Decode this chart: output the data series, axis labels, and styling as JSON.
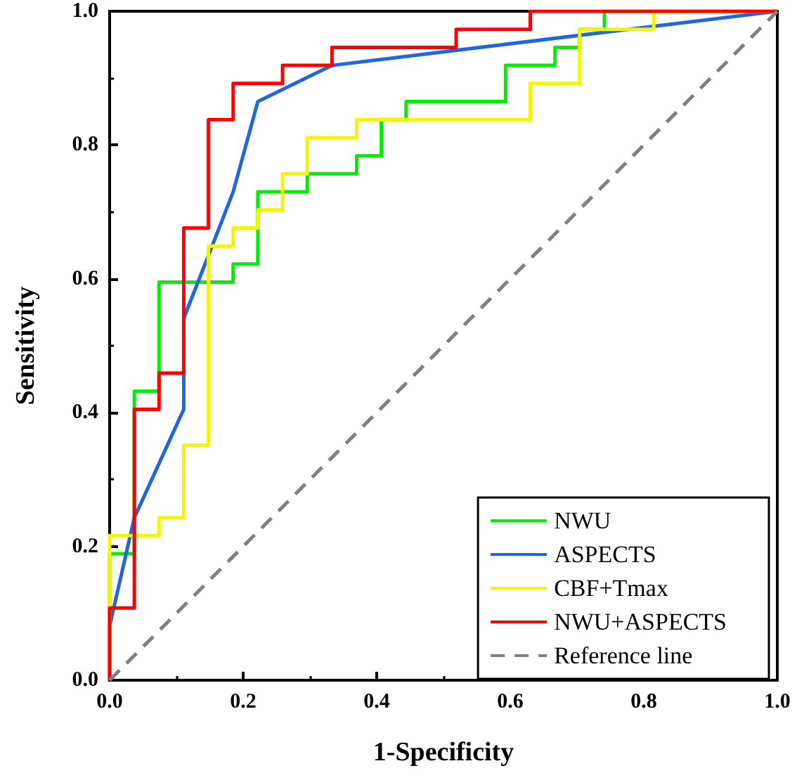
{
  "chart_data": {
    "type": "line",
    "xlabel": "1-Specificity",
    "ylabel": "Sensitivity",
    "xlim": [
      0,
      1
    ],
    "ylim": [
      0,
      1
    ],
    "xticks": [
      {
        "value": 0,
        "label": "0.0"
      },
      {
        "value": 0.2,
        "label": "0.2"
      },
      {
        "value": 0.4,
        "label": "0.4"
      },
      {
        "value": 0.6,
        "label": "0.6"
      },
      {
        "value": 0.8,
        "label": "0.8"
      },
      {
        "value": 1,
        "label": "1.0"
      }
    ],
    "yticks": [
      {
        "value": 0,
        "label": "0.0"
      },
      {
        "value": 0.2,
        "label": "0.2"
      },
      {
        "value": 0.4,
        "label": "0.4"
      },
      {
        "value": 0.6,
        "label": "0.6"
      },
      {
        "value": 0.8,
        "label": "0.8"
      },
      {
        "value": 1,
        "label": "1.0"
      }
    ],
    "grid": false,
    "legend": "bottom right",
    "marker": "none",
    "series": [
      {
        "name": "NWU",
        "color": "#00ee00",
        "x": [
          0,
          0,
          0.037,
          0.037,
          0.074,
          0.074,
          0.185,
          0.185,
          0.222,
          0.222,
          0.296,
          0.296,
          0.37,
          0.37,
          0.407,
          0.407,
          0.444,
          0.444,
          0.593,
          0.593,
          0.667,
          0.667,
          0.704,
          0.704,
          0.741,
          0.741,
          1
        ],
        "values": [
          0,
          0.189,
          0.189,
          0.432,
          0.432,
          0.595,
          0.595,
          0.622,
          0.622,
          0.73,
          0.73,
          0.757,
          0.757,
          0.784,
          0.784,
          0.838,
          0.838,
          0.865,
          0.865,
          0.919,
          0.919,
          0.946,
          0.946,
          0.973,
          0.973,
          1,
          1
        ]
      },
      {
        "name": "ASPECTS",
        "color": "#1f66e0",
        "x": [
          0,
          0,
          0.037,
          0.111,
          0.111,
          0.148,
          0.185,
          0.222,
          0.333,
          1
        ],
        "values": [
          0,
          0.081,
          0.243,
          0.405,
          0.541,
          0.635,
          0.73,
          0.865,
          0.919,
          1
        ]
      },
      {
        "name": "CBF+Tmax",
        "color": "#f5f500",
        "x": [
          0,
          0,
          0.074,
          0.074,
          0.111,
          0.111,
          0.148,
          0.148,
          0.185,
          0.185,
          0.222,
          0.222,
          0.259,
          0.259,
          0.296,
          0.296,
          0.37,
          0.37,
          0.63,
          0.63,
          0.704,
          0.704,
          0.815,
          0.815,
          1
        ],
        "values": [
          0,
          0.216,
          0.216,
          0.243,
          0.243,
          0.351,
          0.351,
          0.649,
          0.649,
          0.676,
          0.676,
          0.703,
          0.703,
          0.757,
          0.757,
          0.811,
          0.811,
          0.838,
          0.838,
          0.892,
          0.892,
          0.973,
          0.973,
          1,
          1
        ]
      },
      {
        "name": "NWU+ASPECTS",
        "color": "#ff0000",
        "x": [
          0,
          0,
          0.037,
          0.037,
          0.074,
          0.074,
          0.111,
          0.111,
          0.148,
          0.148,
          0.185,
          0.185,
          0.259,
          0.259,
          0.333,
          0.333,
          0.519,
          0.519,
          0.63,
          0.63,
          1
        ],
        "values": [
          0,
          0.108,
          0.108,
          0.405,
          0.405,
          0.459,
          0.459,
          0.676,
          0.676,
          0.838,
          0.838,
          0.892,
          0.892,
          0.919,
          0.919,
          0.946,
          0.946,
          0.973,
          0.973,
          1,
          1
        ]
      },
      {
        "name": "Reference line",
        "color": "#808080",
        "line_style": "dashed",
        "x": [
          0,
          1
        ],
        "values": [
          0,
          1
        ]
      }
    ]
  }
}
